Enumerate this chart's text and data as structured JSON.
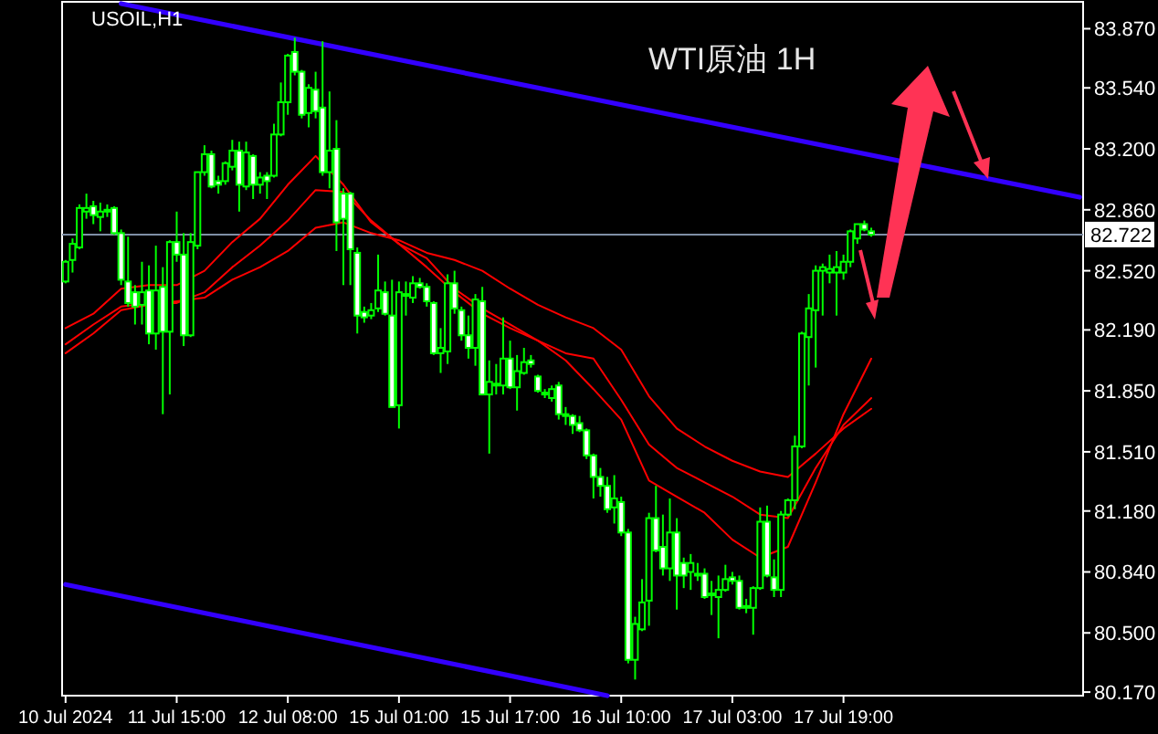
{
  "chart_data": {
    "type": "candlestick",
    "title": "WTI原油 1H",
    "subtitle": "USOIL,H1",
    "categories": [
      "10 Jul 2024",
      null,
      null,
      null,
      null,
      null,
      null,
      null,
      null,
      null,
      null,
      null,
      null,
      null,
      null,
      null,
      "11 Jul 15:00",
      null,
      null,
      null,
      null,
      null,
      null,
      null,
      null,
      null,
      null,
      null,
      null,
      null,
      null,
      null,
      "12 Jul 08:00",
      null,
      null,
      null,
      null,
      null,
      null,
      null,
      null,
      null,
      null,
      null,
      null,
      null,
      null,
      null,
      "15 Jul 01:00",
      null,
      null,
      null,
      null,
      null,
      null,
      null,
      null,
      null,
      null,
      null,
      null,
      null,
      null,
      null,
      "15 Jul 17:00",
      null,
      null,
      null,
      null,
      null,
      null,
      null,
      null,
      null,
      null,
      null,
      null,
      null,
      null,
      null,
      "16 Jul 10:00",
      null,
      null,
      null,
      null,
      null,
      null,
      null,
      null,
      null,
      null,
      null,
      null,
      null,
      null,
      null,
      "17 Jul 03:00",
      null,
      null,
      null,
      null,
      null,
      null,
      null,
      null,
      null,
      null,
      null,
      null,
      null,
      null,
      null,
      "17 Jul 19:00",
      null,
      null,
      null,
      null,
      null,
      null,
      null,
      null,
      null,
      null,
      null,
      null,
      null,
      null,
      null,
      null,
      null,
      null,
      null,
      null,
      null,
      null,
      null,
      null,
      null,
      null,
      null,
      null,
      null,
      null,
      null,
      null,
      null,
      null
    ],
    "ylim": [
      80.15,
      84.02
    ],
    "yticks": [
      {
        "value": 83.87,
        "label": "83.870"
      },
      {
        "value": 83.54,
        "label": "83.540"
      },
      {
        "value": 83.2,
        "label": "83.200"
      },
      {
        "value": 82.86,
        "label": "82.860"
      },
      {
        "value": 82.52,
        "label": "82.520"
      },
      {
        "value": 82.19,
        "label": "82.190"
      },
      {
        "value": 81.85,
        "label": "81.850"
      },
      {
        "value": 81.51,
        "label": "81.510"
      },
      {
        "value": 81.18,
        "label": "81.180"
      },
      {
        "value": 80.84,
        "label": "80.840"
      },
      {
        "value": 80.5,
        "label": "80.500"
      },
      {
        "value": 80.17,
        "label": "80.170"
      }
    ],
    "ref_lines": [
      {
        "axis": "y",
        "value": 82.722,
        "label": "82.722",
        "color": "#7f8fa6"
      }
    ],
    "series": [
      {
        "type": "line",
        "color": "#3300ff",
        "values": [
          null,
          null,
          null,
          null,
          null,
          null,
          null,
          null,
          84.01,
          null,
          null,
          null,
          null,
          null,
          null,
          null,
          null,
          null,
          null,
          null,
          null,
          null,
          null,
          null,
          null,
          null,
          null,
          null,
          null,
          null,
          null,
          null,
          null,
          null,
          null,
          null,
          null,
          null,
          null,
          null,
          null,
          null,
          null,
          null,
          null,
          null,
          null,
          null,
          null,
          null,
          null,
          null,
          null,
          null,
          null,
          null,
          null,
          null,
          null,
          null,
          null,
          null,
          null,
          null,
          null,
          null,
          null,
          null,
          null,
          null,
          null,
          null,
          null,
          null,
          null,
          null,
          null,
          null,
          null,
          null,
          null,
          null,
          null,
          null,
          null,
          null,
          null,
          null,
          null,
          null,
          null,
          null,
          null,
          null,
          null,
          null,
          null,
          null,
          null,
          null,
          null,
          null,
          null,
          null,
          null,
          null,
          null,
          null,
          null,
          null,
          null,
          null,
          null,
          null,
          null,
          null,
          null,
          null,
          null,
          null,
          null,
          null,
          null,
          null,
          null,
          null,
          null,
          null,
          null,
          null,
          null,
          null,
          null,
          null,
          null,
          null,
          null,
          null,
          null,
          null,
          null,
          null,
          null,
          null,
          null,
          null,
          82.93
        ]
      },
      {
        "type": "line",
        "color": "#3300ff",
        "values": [
          80.77,
          null,
          null,
          null,
          null,
          null,
          null,
          null,
          null,
          null,
          null,
          null,
          null,
          null,
          null,
          null,
          null,
          null,
          null,
          null,
          null,
          null,
          null,
          null,
          null,
          null,
          null,
          null,
          null,
          null,
          null,
          null,
          null,
          null,
          null,
          null,
          null,
          null,
          null,
          null,
          null,
          null,
          null,
          null,
          null,
          null,
          null,
          null,
          null,
          null,
          null,
          null,
          null,
          null,
          null,
          null,
          null,
          null,
          null,
          null,
          null,
          null,
          null,
          null,
          null,
          null,
          null,
          null,
          null,
          null,
          null,
          null,
          null,
          null,
          null,
          null,
          null,
          null,
          80.15,
          null,
          null,
          null,
          null,
          null,
          null,
          null,
          null,
          null,
          null,
          null,
          null,
          null,
          null,
          null,
          null,
          null,
          null,
          null,
          null,
          null,
          null,
          null,
          null,
          null,
          null,
          null,
          null,
          null,
          null,
          null,
          null,
          null,
          null,
          null,
          null,
          null,
          null,
          null,
          null,
          null,
          null,
          null,
          null,
          null,
          null,
          null,
          null,
          null,
          null,
          null,
          null,
          null,
          null,
          null,
          null,
          null,
          null,
          null,
          null,
          null,
          null,
          null,
          null,
          null,
          null,
          null,
          null
        ]
      },
      {
        "type": "line",
        "color": "#ff0000",
        "values": [
          82.2,
          null,
          null,
          null,
          82.28,
          null,
          null,
          null,
          82.42,
          null,
          null,
          null,
          82.44,
          null,
          null,
          null,
          82.44,
          null,
          null,
          null,
          82.52,
          null,
          null,
          null,
          82.68,
          null,
          null,
          null,
          82.81,
          null,
          null,
          null,
          83.0,
          null,
          null,
          null,
          83.16,
          null,
          null,
          null,
          83.0,
          null,
          null,
          null,
          82.79,
          null,
          null,
          null,
          82.67,
          null,
          null,
          null,
          82.59,
          null,
          null,
          null,
          82.42,
          null,
          null,
          null,
          82.31,
          null,
          null,
          null,
          82.22,
          null,
          null,
          null,
          82.13,
          null,
          null,
          null,
          82.02,
          null,
          null,
          null,
          81.86,
          null,
          null,
          null,
          81.69,
          null,
          null,
          null,
          81.35,
          null,
          null,
          null,
          81.26,
          null,
          null,
          null,
          81.17,
          null,
          null,
          null,
          81.02,
          null,
          null,
          null,
          80.92,
          null,
          null,
          null,
          80.98,
          null,
          null,
          null,
          81.34,
          null,
          null,
          null,
          81.72,
          null,
          null,
          null,
          82.03,
          null,
          null,
          null,
          null,
          null,
          null,
          null,
          null,
          null,
          null,
          null,
          null,
          null,
          null,
          null,
          null,
          null,
          null,
          null,
          null,
          null,
          null,
          null,
          null,
          null,
          null,
          null,
          null,
          null,
          null
        ]
      },
      {
        "type": "line",
        "color": "#ff0000",
        "values": [
          82.11,
          null,
          null,
          null,
          82.22,
          null,
          null,
          null,
          82.32,
          null,
          null,
          null,
          82.34,
          null,
          null,
          null,
          82.34,
          null,
          null,
          null,
          82.4,
          null,
          null,
          null,
          82.54,
          null,
          null,
          null,
          82.66,
          null,
          null,
          null,
          82.8,
          null,
          null,
          null,
          82.97,
          null,
          null,
          null,
          82.96,
          null,
          null,
          null,
          82.8,
          null,
          null,
          null,
          82.67,
          null,
          null,
          null,
          82.54,
          null,
          null,
          null,
          82.4,
          null,
          null,
          null,
          82.28,
          null,
          null,
          null,
          82.2,
          null,
          null,
          null,
          82.13,
          null,
          null,
          null,
          82.06,
          null,
          null,
          null,
          82.03,
          null,
          null,
          null,
          81.8,
          null,
          null,
          null,
          81.55,
          null,
          null,
          null,
          81.42,
          null,
          null,
          null,
          81.34,
          null,
          null,
          null,
          81.26,
          null,
          null,
          null,
          81.16,
          null,
          null,
          null,
          81.14,
          null,
          null,
          null,
          81.42,
          null,
          null,
          null,
          81.66,
          null,
          null,
          null,
          81.81,
          null,
          null,
          null,
          null,
          null,
          null,
          null,
          null,
          null,
          null,
          null,
          null,
          null,
          null,
          null,
          null,
          null,
          null,
          null,
          null,
          null,
          null,
          null,
          null,
          null,
          null,
          null,
          null,
          null,
          null
        ]
      },
      {
        "type": "line",
        "color": "#ff0000",
        "values": [
          82.06,
          null,
          null,
          null,
          82.17,
          null,
          null,
          null,
          82.3,
          null,
          null,
          null,
          82.33,
          null,
          null,
          null,
          82.35,
          null,
          null,
          null,
          82.37,
          null,
          null,
          null,
          82.47,
          null,
          null,
          null,
          82.54,
          null,
          null,
          null,
          82.63,
          null,
          null,
          null,
          82.76,
          null,
          null,
          null,
          82.79,
          null,
          null,
          null,
          82.73,
          null,
          null,
          null,
          82.69,
          null,
          null,
          null,
          82.62,
          null,
          null,
          null,
          82.58,
          null,
          null,
          null,
          82.52,
          null,
          null,
          null,
          82.42,
          null,
          null,
          null,
          82.33,
          null,
          null,
          null,
          82.26,
          null,
          null,
          null,
          82.2,
          null,
          null,
          null,
          82.08,
          null,
          null,
          null,
          81.82,
          null,
          null,
          null,
          81.64,
          null,
          null,
          null,
          81.54,
          null,
          null,
          null,
          81.46,
          null,
          null,
          null,
          81.4,
          null,
          null,
          null,
          81.37,
          null,
          null,
          null,
          81.5,
          null,
          null,
          null,
          81.64,
          null,
          null,
          null,
          81.75,
          null,
          null,
          null,
          null,
          null,
          null,
          null,
          null,
          null,
          null,
          null,
          null,
          null,
          null,
          null,
          null,
          null,
          null,
          null,
          null,
          null,
          null,
          null,
          null,
          null,
          null,
          null,
          null,
          null,
          null
        ]
      },
      {
        "type": "candlestick",
        "color": "#00ff00",
        "ohlc": [
          [
            82.46,
            82.58,
            82.45,
            82.57
          ],
          [
            82.58,
            82.7,
            82.51,
            82.67
          ],
          [
            82.65,
            82.89,
            82.64,
            82.87
          ],
          [
            82.85,
            82.95,
            82.81,
            82.87
          ],
          [
            82.88,
            82.91,
            82.78,
            82.83
          ],
          [
            82.82,
            82.9,
            82.74,
            82.85
          ],
          [
            82.85,
            82.89,
            82.82,
            82.86
          ],
          [
            82.87,
            82.88,
            82.72,
            82.73
          ],
          [
            82.73,
            82.75,
            82.44,
            82.47
          ],
          [
            82.46,
            82.71,
            82.32,
            82.34
          ],
          [
            82.4,
            82.44,
            82.22,
            82.32
          ],
          [
            82.33,
            82.57,
            82.22,
            82.4
          ],
          [
            82.41,
            82.55,
            82.11,
            82.17
          ],
          [
            82.17,
            82.66,
            82.08,
            82.41
          ],
          [
            82.43,
            82.54,
            81.72,
            82.18
          ],
          [
            82.18,
            82.69,
            81.83,
            82.68
          ],
          [
            82.68,
            82.85,
            82.57,
            82.61
          ],
          [
            82.61,
            82.73,
            82.1,
            82.16
          ],
          [
            82.16,
            82.73,
            82.15,
            82.68
          ],
          [
            82.66,
            83.07,
            82.64,
            83.07
          ],
          [
            83.07,
            83.22,
            83.05,
            83.17
          ],
          [
            83.17,
            83.19,
            82.98,
            82.99
          ],
          [
            83.02,
            83.05,
            82.95,
            83.0
          ],
          [
            83.02,
            83.13,
            83.0,
            83.12
          ],
          [
            83.1,
            83.25,
            83.08,
            83.19
          ],
          [
            83.19,
            83.24,
            82.85,
            83.0
          ],
          [
            82.99,
            83.24,
            82.97,
            83.18
          ],
          [
            83.16,
            83.17,
            82.92,
            83.0
          ],
          [
            83.0,
            83.07,
            82.95,
            83.04
          ],
          [
            83.05,
            83.07,
            82.92,
            83.02
          ],
          [
            83.05,
            83.34,
            83.04,
            83.28
          ],
          [
            83.28,
            83.57,
            83.27,
            83.46
          ],
          [
            83.46,
            83.73,
            83.39,
            83.72
          ],
          [
            83.74,
            83.82,
            83.61,
            83.63
          ],
          [
            83.63,
            83.64,
            83.37,
            83.39
          ],
          [
            83.4,
            83.56,
            83.32,
            83.54
          ],
          [
            83.53,
            83.63,
            83.37,
            83.41
          ],
          [
            83.43,
            83.8,
            83.05,
            83.07
          ],
          [
            83.07,
            83.52,
            82.98,
            83.19
          ],
          [
            83.2,
            83.36,
            82.63,
            82.79
          ],
          [
            82.95,
            82.98,
            82.44,
            82.81
          ],
          [
            82.95,
            82.96,
            82.44,
            82.64
          ],
          [
            82.62,
            82.65,
            82.17,
            82.27
          ],
          [
            82.29,
            82.32,
            82.23,
            82.26
          ],
          [
            82.27,
            82.34,
            82.25,
            82.3
          ],
          [
            82.31,
            82.61,
            82.29,
            82.41
          ],
          [
            82.4,
            82.46,
            82.27,
            82.28
          ],
          [
            82.27,
            82.47,
            81.76,
            81.76
          ],
          [
            81.77,
            82.46,
            81.64,
            82.4
          ],
          [
            82.38,
            82.46,
            82.27,
            82.39
          ],
          [
            82.37,
            82.49,
            82.34,
            82.45
          ],
          [
            82.45,
            82.48,
            82.42,
            82.43
          ],
          [
            82.43,
            82.45,
            82.32,
            82.35
          ],
          [
            82.34,
            82.35,
            82.05,
            82.06
          ],
          [
            82.06,
            82.2,
            81.95,
            82.09
          ],
          [
            82.07,
            82.5,
            82.0,
            82.45
          ],
          [
            82.45,
            82.52,
            82.28,
            82.31
          ],
          [
            82.3,
            82.32,
            82.13,
            82.16
          ],
          [
            82.16,
            82.27,
            82.03,
            82.09
          ],
          [
            82.09,
            82.39,
            81.99,
            82.36
          ],
          [
            82.35,
            82.43,
            81.83,
            81.83
          ],
          [
            81.83,
            82.02,
            81.5,
            81.9
          ],
          [
            81.88,
            82.0,
            81.83,
            81.89
          ],
          [
            81.88,
            82.26,
            81.83,
            82.03
          ],
          [
            82.03,
            82.13,
            81.86,
            81.87
          ],
          [
            81.87,
            82.05,
            81.74,
            81.96
          ],
          [
            81.95,
            82.09,
            81.94,
            82.01
          ],
          [
            82.02,
            82.05,
            81.98,
            82.0
          ],
          [
            81.93,
            81.94,
            81.84,
            81.85
          ],
          [
            81.84,
            81.86,
            81.81,
            81.83
          ],
          [
            81.81,
            81.88,
            81.79,
            81.86
          ],
          [
            81.88,
            81.9,
            81.69,
            81.72
          ],
          [
            81.72,
            81.76,
            81.66,
            81.71
          ],
          [
            81.71,
            81.72,
            81.61,
            81.66
          ],
          [
            81.67,
            81.71,
            81.62,
            81.63
          ],
          [
            81.63,
            81.64,
            81.47,
            81.49
          ],
          [
            81.49,
            81.5,
            81.25,
            81.37
          ],
          [
            81.37,
            81.42,
            81.26,
            81.32
          ],
          [
            81.32,
            81.37,
            81.17,
            81.19
          ],
          [
            81.2,
            81.38,
            81.11,
            81.25
          ],
          [
            81.23,
            81.26,
            81.04,
            81.06
          ],
          [
            81.06,
            81.08,
            80.33,
            80.35
          ],
          [
            80.35,
            80.59,
            80.24,
            80.55
          ],
          [
            80.52,
            80.8,
            80.51,
            80.67
          ],
          [
            80.68,
            81.17,
            80.54,
            81.14
          ],
          [
            81.14,
            81.32,
            80.95,
            80.96
          ],
          [
            80.98,
            81.16,
            80.82,
            80.86
          ],
          [
            80.86,
            81.25,
            80.79,
            81.06
          ],
          [
            81.06,
            81.14,
            80.63,
            80.82
          ],
          [
            80.89,
            80.92,
            80.75,
            80.82
          ],
          [
            80.84,
            80.94,
            80.74,
            80.89
          ],
          [
            80.83,
            80.89,
            80.79,
            80.82
          ],
          [
            80.83,
            80.86,
            80.69,
            80.7
          ],
          [
            80.72,
            80.79,
            80.6,
            80.71
          ],
          [
            80.7,
            80.82,
            80.47,
            80.74
          ],
          [
            80.74,
            80.88,
            80.73,
            80.8
          ],
          [
            80.81,
            80.84,
            80.77,
            80.79
          ],
          [
            80.79,
            80.82,
            80.63,
            80.64
          ],
          [
            80.65,
            80.69,
            80.61,
            80.64
          ],
          [
            80.64,
            80.76,
            80.49,
            80.75
          ],
          [
            80.75,
            81.2,
            80.74,
            81.12
          ],
          [
            81.12,
            81.21,
            80.81,
            80.82
          ],
          [
            80.81,
            80.91,
            80.7,
            80.74
          ],
          [
            80.74,
            81.18,
            80.7,
            81.16
          ],
          [
            81.16,
            81.25,
            81.15,
            81.24
          ],
          [
            81.24,
            81.6,
            81.19,
            81.54
          ],
          [
            81.54,
            82.18,
            81.53,
            82.17
          ],
          [
            82.15,
            82.39,
            81.88,
            82.31
          ],
          [
            82.3,
            82.55,
            81.98,
            82.52
          ],
          [
            82.52,
            82.56,
            82.27,
            82.54
          ],
          [
            82.51,
            82.61,
            82.45,
            82.53
          ],
          [
            82.51,
            82.63,
            82.27,
            82.54
          ],
          [
            82.51,
            82.61,
            82.47,
            82.57
          ],
          [
            82.57,
            82.75,
            82.54,
            82.74
          ],
          [
            82.7,
            82.78,
            82.67,
            82.78
          ],
          [
            82.78,
            82.8,
            82.74,
            82.75
          ],
          [
            82.74,
            82.76,
            82.71,
            82.722
          ],
          null,
          null,
          null,
          null,
          null,
          null,
          null,
          null,
          null,
          null,
          null,
          null,
          null,
          null,
          null,
          null,
          null,
          null,
          null,
          null,
          null,
          null,
          null,
          null,
          null,
          null,
          null,
          null,
          null,
          null
        ]
      }
    ]
  }
}
